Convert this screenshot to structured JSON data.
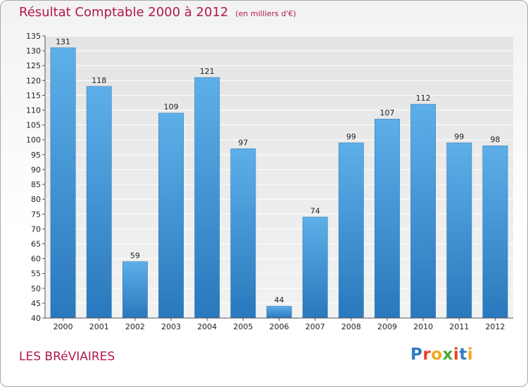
{
  "header": {
    "title": "Résultat Comptable 2000 à 2012",
    "unit": "(en milliers d'€)"
  },
  "footer": {
    "place": "LES BRéVIAIRES",
    "logo_text": "Proxiti"
  },
  "colors": {
    "title": "#b0174e",
    "bar": "#3b8fd6",
    "logo_letters": [
      "#2e7bc4",
      "#e8432a",
      "#f2a71b",
      "#4aa83d",
      "#e8432a",
      "#2e7bc4",
      "#f2a71b"
    ]
  },
  "chart_data": {
    "type": "bar",
    "categories": [
      "2000",
      "2001",
      "2002",
      "2003",
      "2004",
      "2005",
      "2006",
      "2007",
      "2008",
      "2009",
      "2010",
      "2011",
      "2012"
    ],
    "values": [
      131,
      118,
      59,
      109,
      121,
      97,
      44,
      74,
      99,
      107,
      112,
      99,
      98
    ],
    "title": "Résultat Comptable 2000 à 2012",
    "xlabel": "",
    "ylabel": "",
    "ylim": [
      40,
      135
    ],
    "yticks": [
      40,
      45,
      50,
      55,
      60,
      65,
      70,
      75,
      80,
      85,
      90,
      95,
      100,
      105,
      110,
      115,
      120,
      125,
      130,
      135
    ],
    "grid": true,
    "data_labels": true
  }
}
